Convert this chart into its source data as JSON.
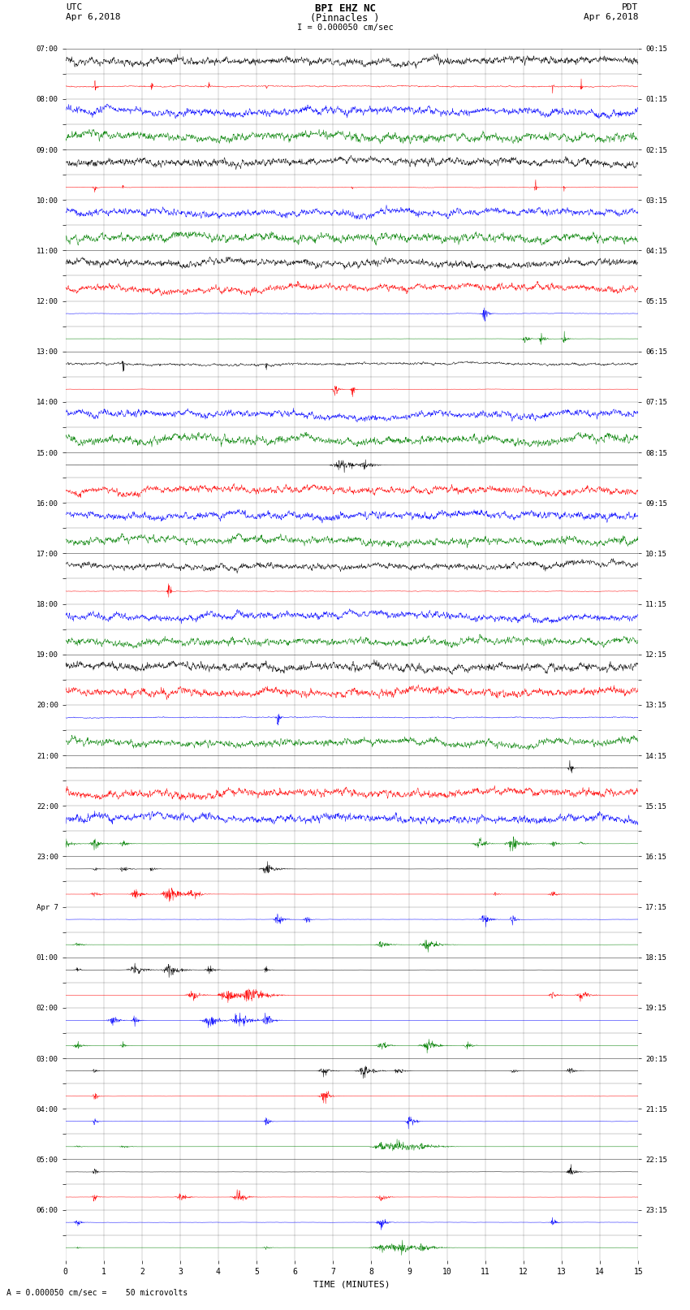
{
  "title_line1": "BPI EHZ NC",
  "title_line2": "(Pinnacles )",
  "scale_text": "I = 0.000050 cm/sec",
  "left_label_top": "UTC",
  "left_label_bot": "Apr 6,2018",
  "right_label_top": "PDT",
  "right_label_bot": "Apr 6,2018",
  "bottom_label": "A = 0.000050 cm/sec =    50 microvolts",
  "xlabel": "TIME (MINUTES)",
  "left_times": [
    "07:00",
    "",
    "08:00",
    "",
    "09:00",
    "",
    "10:00",
    "",
    "11:00",
    "",
    "12:00",
    "",
    "13:00",
    "",
    "14:00",
    "",
    "15:00",
    "",
    "16:00",
    "",
    "17:00",
    "",
    "18:00",
    "",
    "19:00",
    "",
    "20:00",
    "",
    "21:00",
    "",
    "22:00",
    "",
    "23:00",
    "",
    "Apr 7",
    "",
    "01:00",
    "",
    "02:00",
    "",
    "03:00",
    "",
    "04:00",
    "",
    "05:00",
    "",
    "06:00",
    ""
  ],
  "right_times": [
    "00:15",
    "",
    "01:15",
    "",
    "02:15",
    "",
    "03:15",
    "",
    "04:15",
    "",
    "05:15",
    "",
    "06:15",
    "",
    "07:15",
    "",
    "08:15",
    "",
    "09:15",
    "",
    "10:15",
    "",
    "11:15",
    "",
    "12:15",
    "",
    "13:15",
    "",
    "14:15",
    "",
    "15:15",
    "",
    "16:15",
    "",
    "17:15",
    "",
    "18:15",
    "",
    "19:15",
    "",
    "20:15",
    "",
    "21:15",
    "",
    "22:15",
    "",
    "23:15",
    ""
  ],
  "n_rows": 48,
  "minutes_per_row": 15,
  "colors": [
    "black",
    "red",
    "blue",
    "green"
  ],
  "bg_color": "white",
  "trace_scale": 0.3,
  "base_noise": 0.008,
  "seed": 12345
}
